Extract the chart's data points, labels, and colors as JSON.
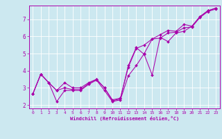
{
  "title": "",
  "xlabel": "Windchill (Refroidissement éolien,°C)",
  "ylabel": "",
  "bg_color": "#cce8f0",
  "line_color": "#aa00aa",
  "grid_color": "#ffffff",
  "xlim": [
    -0.5,
    23.5
  ],
  "ylim": [
    1.8,
    7.8
  ],
  "yticks": [
    2,
    3,
    4,
    5,
    6,
    7
  ],
  "xticks": [
    0,
    1,
    2,
    3,
    4,
    5,
    6,
    7,
    8,
    9,
    10,
    11,
    12,
    13,
    14,
    15,
    16,
    17,
    18,
    19,
    20,
    21,
    22,
    23
  ],
  "series": [
    {
      "x": [
        0,
        1,
        2,
        3,
        4,
        5,
        6,
        7,
        8,
        9,
        10,
        11,
        12,
        13,
        14,
        15,
        16,
        17,
        18,
        19,
        20,
        21,
        22,
        23
      ],
      "y": [
        2.65,
        3.8,
        3.3,
        2.2,
        2.85,
        2.85,
        2.85,
        3.2,
        3.45,
        2.85,
        2.2,
        2.3,
        3.7,
        4.3,
        5.0,
        5.85,
        5.9,
        6.2,
        6.25,
        6.5,
        6.55,
        7.1,
        7.45,
        7.6
      ]
    },
    {
      "x": [
        0,
        1,
        2,
        3,
        4,
        5,
        6,
        7,
        8,
        9,
        10,
        11,
        12,
        13,
        14,
        15,
        16,
        17,
        18,
        19,
        20,
        21,
        22,
        23
      ],
      "y": [
        2.65,
        3.8,
        3.3,
        2.85,
        3.3,
        3.0,
        3.0,
        3.3,
        3.5,
        3.0,
        2.3,
        2.4,
        4.2,
        5.3,
        5.5,
        5.85,
        6.1,
        6.35,
        6.3,
        6.7,
        6.6,
        7.15,
        7.5,
        7.65
      ]
    },
    {
      "x": [
        0,
        1,
        2,
        3,
        4,
        5,
        6,
        7,
        8,
        9,
        10,
        11,
        12,
        13,
        14,
        15,
        16,
        17,
        18,
        19,
        20,
        21,
        22,
        23
      ],
      "y": [
        2.65,
        3.8,
        3.3,
        2.85,
        3.0,
        2.9,
        2.9,
        3.25,
        3.5,
        3.0,
        2.25,
        2.35,
        4.3,
        5.35,
        4.95,
        3.75,
        5.95,
        5.7,
        6.2,
        6.3,
        6.6,
        7.15,
        7.5,
        7.65
      ]
    }
  ],
  "figsize": [
    3.2,
    2.0
  ],
  "dpi": 100
}
